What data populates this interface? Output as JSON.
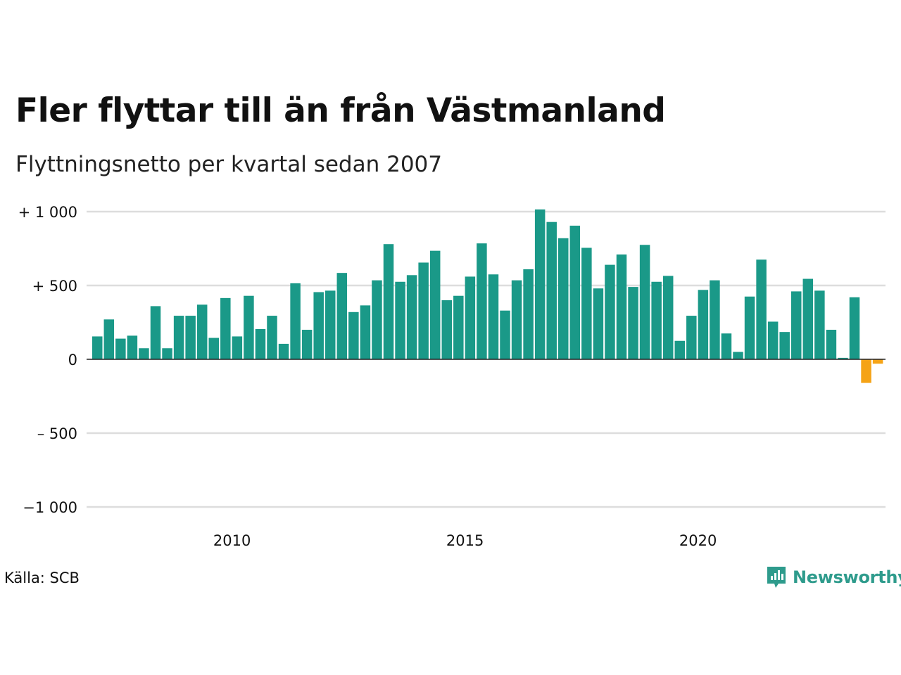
{
  "header": {
    "title": "Fler flyttar till än från Västmanland",
    "subtitle": "Flyttningsnetto per kvartal sedan 2007"
  },
  "footer": {
    "source": "Källa: SCB",
    "brand": "Newsworthy",
    "brand_icon": "newsworthy-logo-icon"
  },
  "colors": {
    "positive": "#1a9988",
    "negative": "#f5a316",
    "grid": "#dddddd",
    "baseline": "#222222",
    "brand": "#2e9b8c"
  },
  "chart_data": {
    "type": "bar",
    "title": "Fler flyttar till än från Västmanland",
    "subtitle": "Flyttningsnetto per kvartal sedan 2007",
    "xlabel": "",
    "ylabel": "",
    "ylim": [
      -1000,
      1000
    ],
    "yticks": [
      {
        "value": 1000,
        "label": "+ 1 000"
      },
      {
        "value": 500,
        "label": "+   500"
      },
      {
        "value": 0,
        "label": "0"
      },
      {
        "value": -500,
        "label": "–  500"
      },
      {
        "value": -1000,
        "label": "−1 000"
      }
    ],
    "xticks": [
      {
        "year": 2010,
        "label": "2010"
      },
      {
        "year": 2015,
        "label": "2015"
      },
      {
        "year": 2020,
        "label": "2020"
      }
    ],
    "first_period": "2007 Q1",
    "grid": true,
    "categories": [
      "2007 Q1",
      "2007 Q2",
      "2007 Q3",
      "2007 Q4",
      "2008 Q1",
      "2008 Q2",
      "2008 Q3",
      "2008 Q4",
      "2009 Q1",
      "2009 Q2",
      "2009 Q3",
      "2009 Q4",
      "2010 Q1",
      "2010 Q2",
      "2010 Q3",
      "2010 Q4",
      "2011 Q1",
      "2011 Q2",
      "2011 Q3",
      "2011 Q4",
      "2012 Q1",
      "2012 Q2",
      "2012 Q3",
      "2012 Q4",
      "2013 Q1",
      "2013 Q2",
      "2013 Q3",
      "2013 Q4",
      "2014 Q1",
      "2014 Q2",
      "2014 Q3",
      "2014 Q4",
      "2015 Q1",
      "2015 Q2",
      "2015 Q3",
      "2015 Q4",
      "2016 Q1",
      "2016 Q2",
      "2016 Q3",
      "2016 Q4",
      "2017 Q1",
      "2017 Q2",
      "2017 Q3",
      "2017 Q4",
      "2018 Q1",
      "2018 Q2",
      "2018 Q3",
      "2018 Q4",
      "2019 Q1",
      "2019 Q2",
      "2019 Q3",
      "2019 Q4",
      "2020 Q1",
      "2020 Q2",
      "2020 Q3",
      "2020 Q4",
      "2021 Q1",
      "2021 Q2",
      "2021 Q3",
      "2021 Q4",
      "2022 Q1",
      "2022 Q2",
      "2022 Q3",
      "2022 Q4",
      "2023 Q1",
      "2023 Q2",
      "2023 Q3",
      "2023 Q4"
    ],
    "values": [
      155,
      270,
      140,
      160,
      75,
      360,
      75,
      295,
      295,
      370,
      145,
      415,
      155,
      430,
      205,
      295,
      105,
      515,
      200,
      455,
      465,
      585,
      320,
      365,
      535,
      780,
      525,
      570,
      655,
      735,
      400,
      430,
      560,
      785,
      575,
      330,
      535,
      610,
      1015,
      930,
      820,
      905,
      755,
      480,
      640,
      710,
      490,
      775,
      525,
      565,
      125,
      295,
      470,
      535,
      175,
      50,
      425,
      675,
      255,
      185,
      460,
      545,
      465,
      200,
      10,
      420,
      -160,
      -30
    ]
  }
}
